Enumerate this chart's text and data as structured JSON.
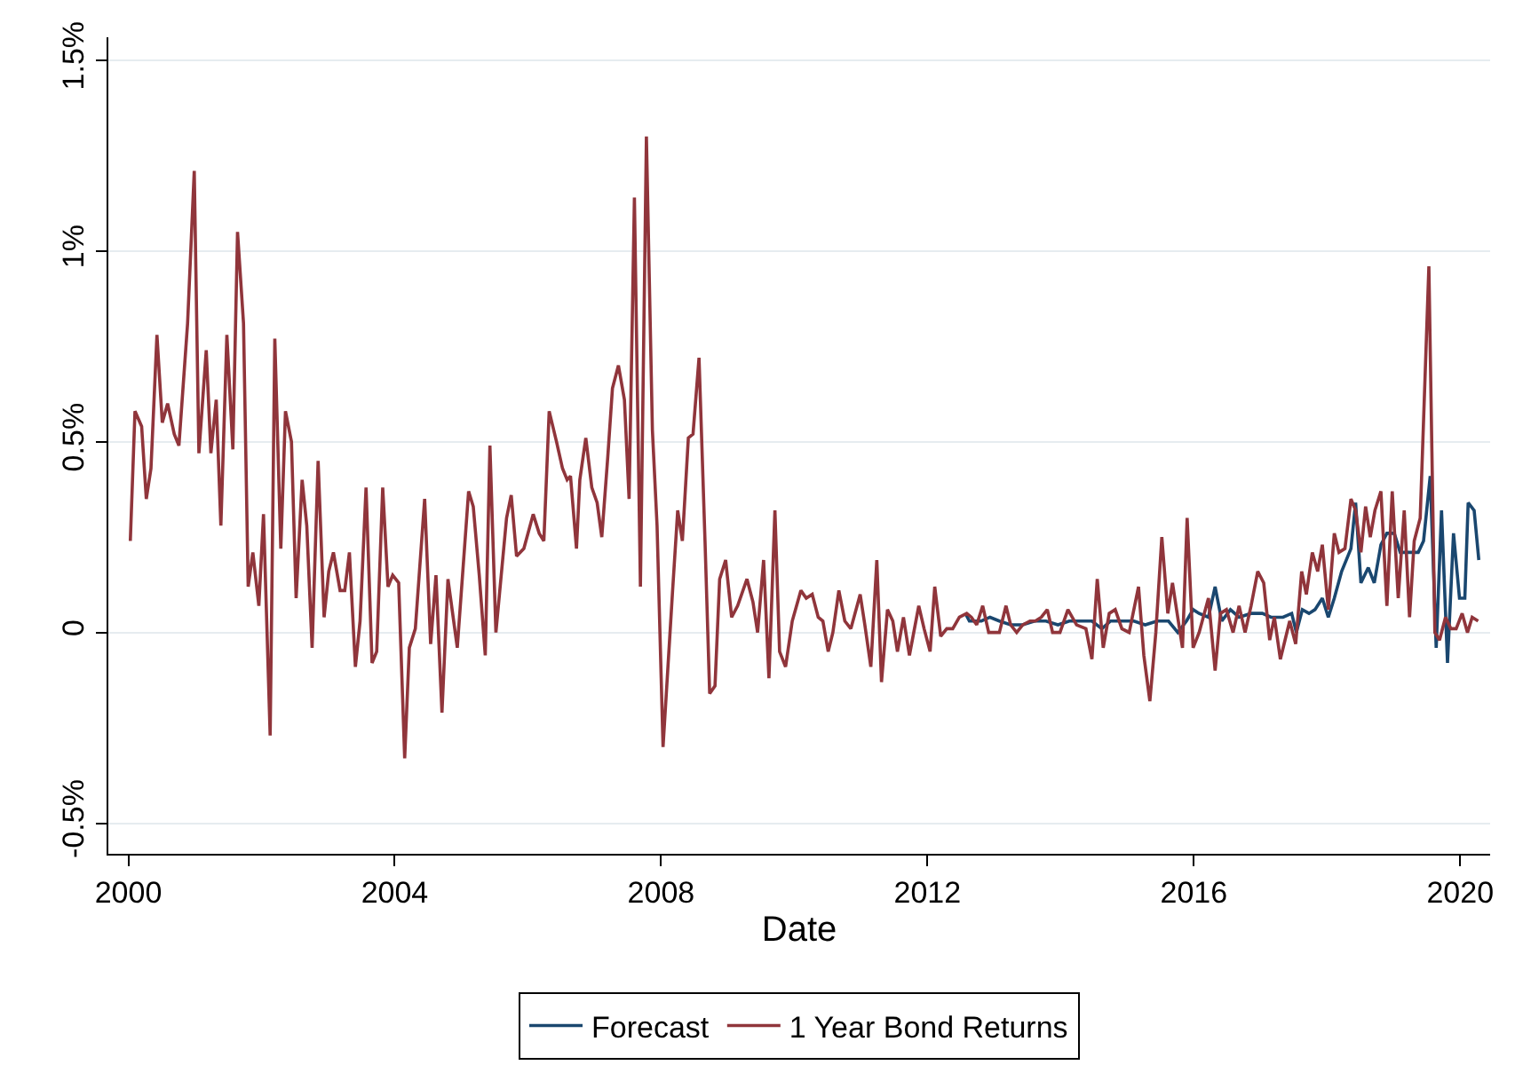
{
  "chart_data": {
    "type": "line",
    "xlabel": "Date",
    "xlim": [
      1999.7,
      2020.45
    ],
    "xticks": [
      2000,
      2004,
      2008,
      2012,
      2016,
      2020
    ],
    "ylim": [
      -0.58,
      1.56
    ],
    "yticks": [
      {
        "value": -0.5,
        "label": "-0.5%"
      },
      0,
      {
        "value": 0.5,
        "label": "0.5%"
      },
      {
        "value": 1,
        "label": "1%"
      },
      {
        "value": 1.5,
        "label": "1.5%"
      }
    ],
    "grid": "y",
    "legend": "bottom",
    "line_style": "solid",
    "marker": "none",
    "series": [
      {
        "name": "Forecast",
        "color": "#1a476f",
        "x": [
          2012.57,
          2012.63,
          2012.72,
          2012.81,
          2012.94,
          2013.08,
          2013.25,
          2013.43,
          2013.61,
          2013.78,
          2013.96,
          2014.13,
          2014.31,
          2014.47,
          2014.62,
          2014.75,
          2014.92,
          2015.1,
          2015.27,
          2015.45,
          2015.62,
          2015.76,
          2015.89,
          2015.99,
          2016.08,
          2016.22,
          2016.32,
          2016.42,
          2016.55,
          2016.68,
          2016.86,
          2017.03,
          2017.16,
          2017.34,
          2017.47,
          2017.54,
          2017.63,
          2017.73,
          2017.82,
          2017.93,
          2018.02,
          2018.11,
          2018.22,
          2018.36,
          2018.43,
          2018.51,
          2018.62,
          2018.71,
          2018.81,
          2018.9,
          2019.01,
          2019.1,
          2019.24,
          2019.37,
          2019.45,
          2019.55,
          2019.64,
          2019.72,
          2019.81,
          2019.9,
          2019.99,
          2020.07,
          2020.12,
          2020.21,
          2020.28
        ],
        "values": [
          0.05,
          0.03,
          0.03,
          0.03,
          0.04,
          0.03,
          0.02,
          0.02,
          0.03,
          0.03,
          0.02,
          0.03,
          0.03,
          0.03,
          0.01,
          0.03,
          0.03,
          0.03,
          0.02,
          0.03,
          0.03,
          0.0,
          0.03,
          0.06,
          0.05,
          0.04,
          0.12,
          0.03,
          0.06,
          0.04,
          0.05,
          0.05,
          0.04,
          0.04,
          0.05,
          0.0,
          0.06,
          0.05,
          0.06,
          0.09,
          0.04,
          0.09,
          0.16,
          0.22,
          0.34,
          0.13,
          0.17,
          0.13,
          0.23,
          0.26,
          0.26,
          0.21,
          0.21,
          0.21,
          0.24,
          0.41,
          -0.04,
          0.32,
          -0.08,
          0.26,
          0.09,
          0.09,
          0.34,
          0.32,
          0.19
        ]
      },
      {
        "name": "1 Year Bond Returns",
        "color": "#90353b",
        "x": [
          2000.03,
          2000.1,
          2000.2,
          2000.27,
          2000.34,
          2000.43,
          2000.51,
          2000.59,
          2000.69,
          2000.76,
          2000.89,
          2000.99,
          2001.06,
          2001.17,
          2001.24,
          2001.32,
          2001.39,
          2001.48,
          2001.57,
          2001.64,
          2001.73,
          2001.8,
          2001.87,
          2001.96,
          2002.03,
          2002.13,
          2002.2,
          2002.29,
          2002.36,
          2002.45,
          2002.52,
          2002.61,
          2002.68,
          2002.76,
          2002.85,
          2002.94,
          2003.01,
          2003.08,
          2003.18,
          2003.25,
          2003.32,
          2003.41,
          2003.48,
          2003.57,
          2003.66,
          2003.73,
          2003.82,
          2003.9,
          2003.97,
          2004.06,
          2004.15,
          2004.22,
          2004.31,
          2004.45,
          2004.54,
          2004.62,
          2004.71,
          2004.8,
          2004.94,
          2005.11,
          2005.18,
          2005.27,
          2005.36,
          2005.43,
          2005.52,
          2005.68,
          2005.75,
          2005.83,
          2005.94,
          2006.08,
          2006.17,
          2006.24,
          2006.32,
          2006.43,
          2006.52,
          2006.59,
          2006.64,
          2006.73,
          2006.78,
          2006.87,
          2006.96,
          2007.04,
          2007.11,
          2007.2,
          2007.27,
          2007.36,
          2007.45,
          2007.52,
          2007.6,
          2007.69,
          2007.78,
          2007.87,
          2007.94,
          2008.03,
          2008.1,
          2008.17,
          2008.25,
          2008.32,
          2008.41,
          2008.48,
          2008.57,
          2008.66,
          2008.73,
          2008.81,
          2008.88,
          2008.97,
          2009.06,
          2009.15,
          2009.29,
          2009.38,
          2009.45,
          2009.54,
          2009.62,
          2009.71,
          2009.78,
          2009.87,
          2009.97,
          2010.1,
          2010.18,
          2010.27,
          2010.36,
          2010.43,
          2010.51,
          2010.58,
          2010.67,
          2010.76,
          2010.85,
          2010.99,
          2011.06,
          2011.15,
          2011.24,
          2011.31,
          2011.4,
          2011.48,
          2011.55,
          2011.64,
          2011.73,
          2011.87,
          2011.95,
          2012.04,
          2012.11,
          2012.2,
          2012.29,
          2012.38,
          2012.48,
          2012.59,
          2012.66,
          2012.74,
          2012.83,
          2012.92,
          2013.01,
          2013.08,
          2013.18,
          2013.25,
          2013.34,
          2013.43,
          2013.54,
          2013.62,
          2013.71,
          2013.8,
          2013.88,
          2013.99,
          2014.11,
          2014.24,
          2014.38,
          2014.47,
          2014.55,
          2014.64,
          2014.73,
          2014.82,
          2014.92,
          2015.03,
          2015.17,
          2015.25,
          2015.34,
          2015.43,
          2015.52,
          2015.61,
          2015.68,
          2015.75,
          2015.83,
          2015.9,
          2015.99,
          2016.08,
          2016.22,
          2016.32,
          2016.4,
          2016.49,
          2016.59,
          2016.68,
          2016.77,
          2016.86,
          2016.96,
          2017.05,
          2017.14,
          2017.21,
          2017.3,
          2017.37,
          2017.44,
          2017.53,
          2017.62,
          2017.69,
          2017.78,
          2017.86,
          2017.93,
          2018.02,
          2018.11,
          2018.18,
          2018.27,
          2018.36,
          2018.43,
          2018.51,
          2018.58,
          2018.65,
          2018.72,
          2018.81,
          2018.9,
          2018.98,
          2019.07,
          2019.16,
          2019.24,
          2019.31,
          2019.4,
          2019.53,
          2019.62,
          2019.69,
          2019.78,
          2019.86,
          2019.94,
          2020.03,
          2020.11,
          2020.18,
          2020.27
        ],
        "values": [
          0.24,
          0.58,
          0.54,
          0.35,
          0.43,
          0.78,
          0.55,
          0.6,
          0.52,
          0.49,
          0.81,
          1.21,
          0.47,
          0.74,
          0.47,
          0.61,
          0.28,
          0.78,
          0.48,
          1.05,
          0.81,
          0.12,
          0.21,
          0.07,
          0.31,
          -0.27,
          0.77,
          0.22,
          0.58,
          0.5,
          0.09,
          0.4,
          0.28,
          -0.04,
          0.45,
          0.04,
          0.16,
          0.21,
          0.11,
          0.11,
          0.21,
          -0.09,
          0.03,
          0.38,
          -0.08,
          -0.05,
          0.38,
          0.12,
          0.15,
          0.13,
          -0.33,
          -0.04,
          0.01,
          0.35,
          -0.03,
          0.15,
          -0.21,
          0.14,
          -0.04,
          0.37,
          0.33,
          0.15,
          -0.06,
          0.49,
          0.0,
          0.3,
          0.36,
          0.2,
          0.22,
          0.31,
          0.26,
          0.24,
          0.58,
          0.5,
          0.43,
          0.4,
          0.41,
          0.22,
          0.4,
          0.51,
          0.38,
          0.34,
          0.25,
          0.46,
          0.64,
          0.7,
          0.61,
          0.35,
          1.14,
          0.12,
          1.3,
          0.53,
          0.28,
          -0.3,
          -0.1,
          0.1,
          0.32,
          0.24,
          0.51,
          0.52,
          0.72,
          0.24,
          -0.16,
          -0.14,
          0.14,
          0.19,
          0.04,
          0.07,
          0.14,
          0.08,
          0.0,
          0.19,
          -0.12,
          0.32,
          -0.05,
          -0.09,
          0.03,
          0.11,
          0.09,
          0.1,
          0.04,
          0.03,
          -0.05,
          0.0,
          0.11,
          0.03,
          0.01,
          0.1,
          0.02,
          -0.09,
          0.19,
          -0.13,
          0.06,
          0.03,
          -0.05,
          0.04,
          -0.06,
          0.07,
          0.01,
          -0.05,
          0.12,
          -0.01,
          0.01,
          0.01,
          0.04,
          0.05,
          0.04,
          0.02,
          0.07,
          0.0,
          0.0,
          0.0,
          0.07,
          0.02,
          0.0,
          0.02,
          0.03,
          0.03,
          0.04,
          0.06,
          0.0,
          0.0,
          0.06,
          0.02,
          0.01,
          -0.07,
          0.14,
          -0.04,
          0.05,
          0.06,
          0.01,
          0.0,
          0.12,
          -0.06,
          -0.18,
          0.0,
          0.25,
          0.05,
          0.13,
          0.05,
          -0.04,
          0.3,
          -0.04,
          0.0,
          0.09,
          -0.1,
          0.05,
          0.06,
          0.0,
          0.07,
          0.0,
          0.07,
          0.16,
          0.13,
          -0.02,
          0.04,
          -0.07,
          -0.02,
          0.03,
          -0.03,
          0.16,
          0.1,
          0.21,
          0.16,
          0.23,
          0.06,
          0.26,
          0.21,
          0.22,
          0.35,
          0.32,
          0.21,
          0.33,
          0.25,
          0.32,
          0.37,
          0.07,
          0.37,
          0.09,
          0.32,
          0.04,
          0.24,
          0.3,
          0.96,
          0.0,
          -0.02,
          0.04,
          0.01,
          0.01,
          0.05,
          0.0,
          0.04,
          0.03
        ]
      }
    ]
  }
}
